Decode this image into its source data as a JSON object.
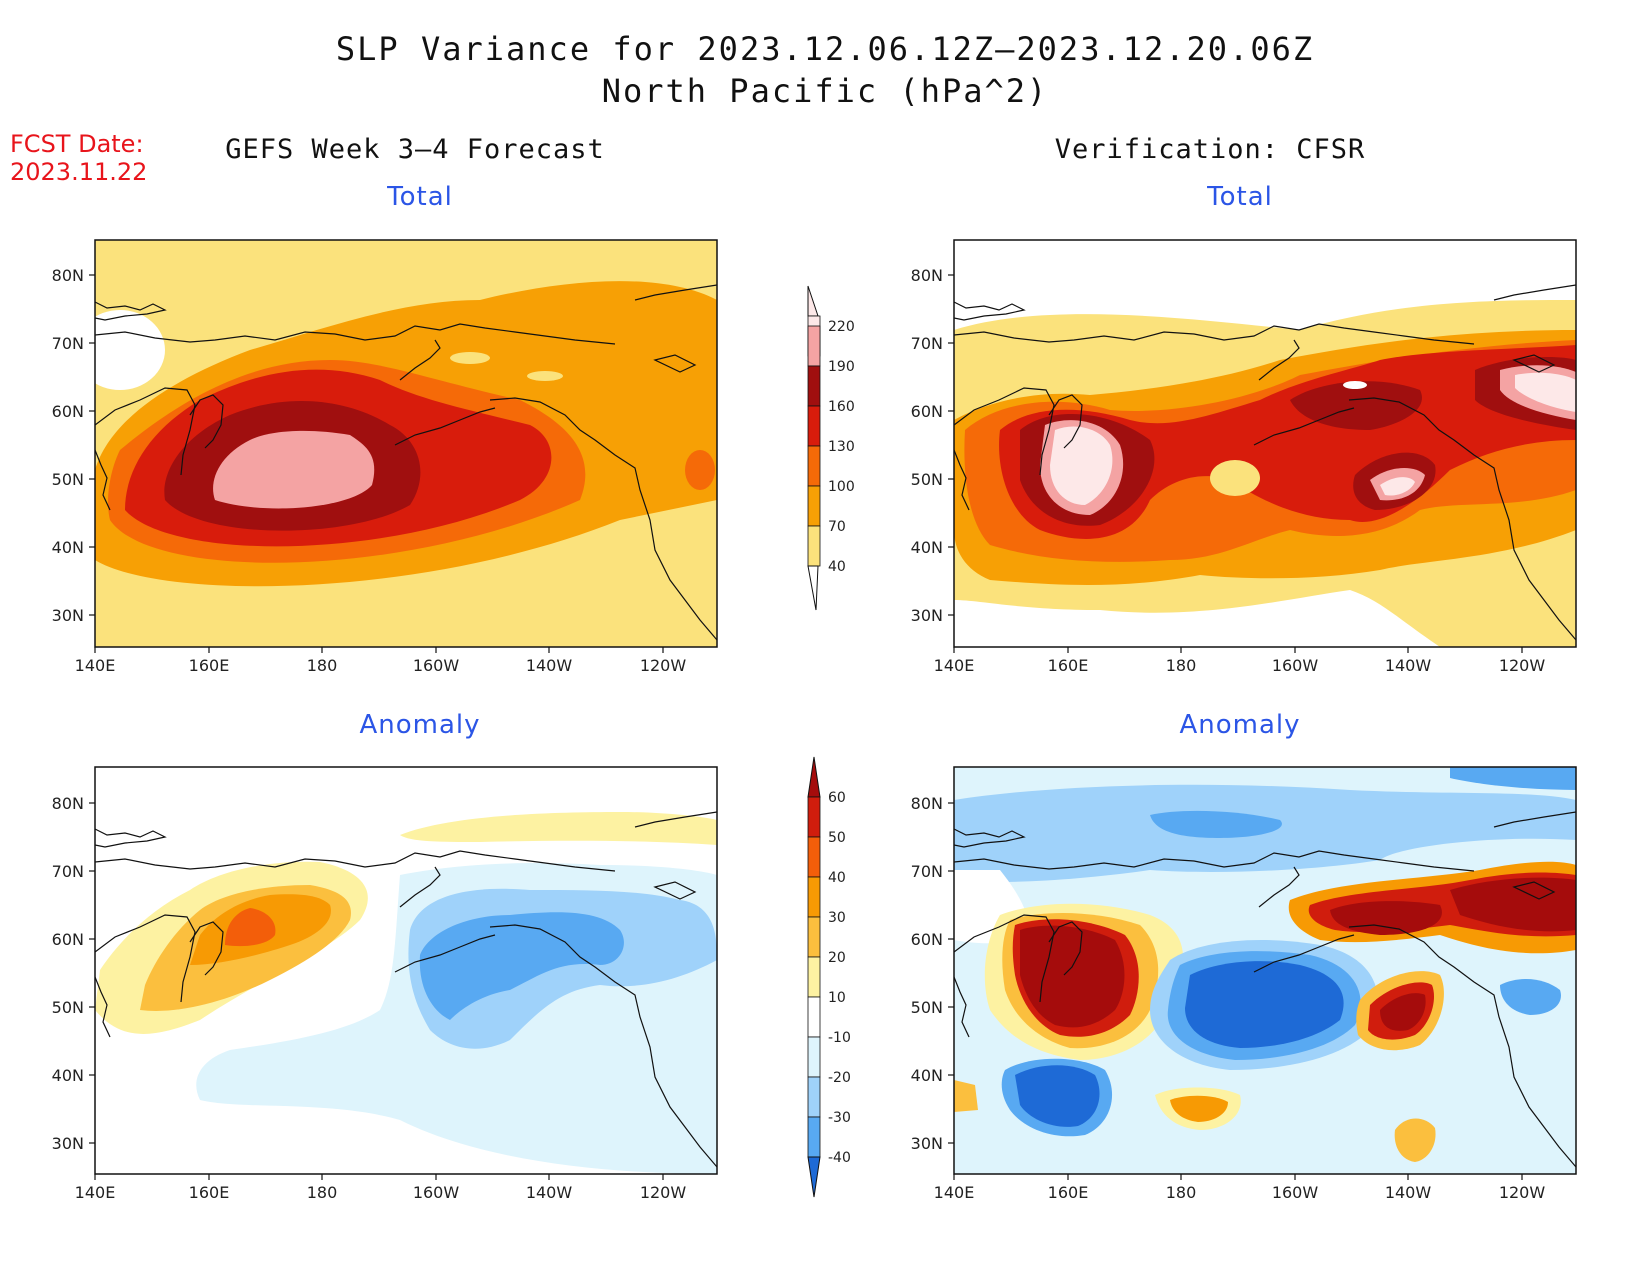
{
  "header": {
    "title_line1": "SLP Variance for 2023.12.06.12Z–2023.12.20.06Z",
    "title_line2": "North Pacific (hPa^2)",
    "fcst_label": "FCST Date:",
    "fcst_date": "2023.11.22",
    "left_title": "GEFS Week 3–4 Forecast",
    "right_title": "Verification: CFSR"
  },
  "panels": {
    "top_left": {
      "subtitle": "Total"
    },
    "top_right": {
      "subtitle": "Total"
    },
    "bottom_left": {
      "subtitle": "Anomaly"
    },
    "bottom_right": {
      "subtitle": "Anomaly"
    }
  },
  "axes": {
    "lat_ticks": [
      "80N",
      "70N",
      "60N",
      "50N",
      "40N",
      "30N"
    ],
    "lon_ticks": [
      "140E",
      "160E",
      "180",
      "160W",
      "140W",
      "120W"
    ]
  },
  "colorbars": {
    "total": {
      "labels": [
        "220",
        "190",
        "160",
        "130",
        "100",
        "70",
        "40"
      ],
      "colors": [
        "#fde8e8",
        "#f4a3a3",
        "#a00f0f",
        "#d81c0c",
        "#f56a08",
        "#f7a005",
        "#fbe27c"
      ]
    },
    "anomaly": {
      "labels": [
        "60",
        "50",
        "40",
        "30",
        "20",
        "10",
        "-10",
        "-20",
        "-30",
        "-40"
      ],
      "colors": [
        "#a50c0c",
        "#d01d0d",
        "#f35e0a",
        "#f79a04",
        "#fbbf3e",
        "#fdf2a2",
        "#ffffff",
        "#def4fc",
        "#9fd2fa",
        "#58a9f2",
        "#1e6ad6"
      ]
    }
  },
  "colors": {
    "pale_pink": "#fde8e8",
    "pink": "#f4a3a3",
    "dark_red": "#a00f0f",
    "red": "#d81c0c",
    "orange": "#f56a08",
    "amber": "#f7a005",
    "yellow": "#fbe27c",
    "pale_yellow": "#fdf2a2",
    "light_blue": "#def4fc",
    "sky_blue": "#9fd2fa",
    "mid_blue": "#58a9f2",
    "dark_blue": "#1e6ad6",
    "title_blue": "#2b55e6",
    "fcst_red": "#e8141b"
  }
}
